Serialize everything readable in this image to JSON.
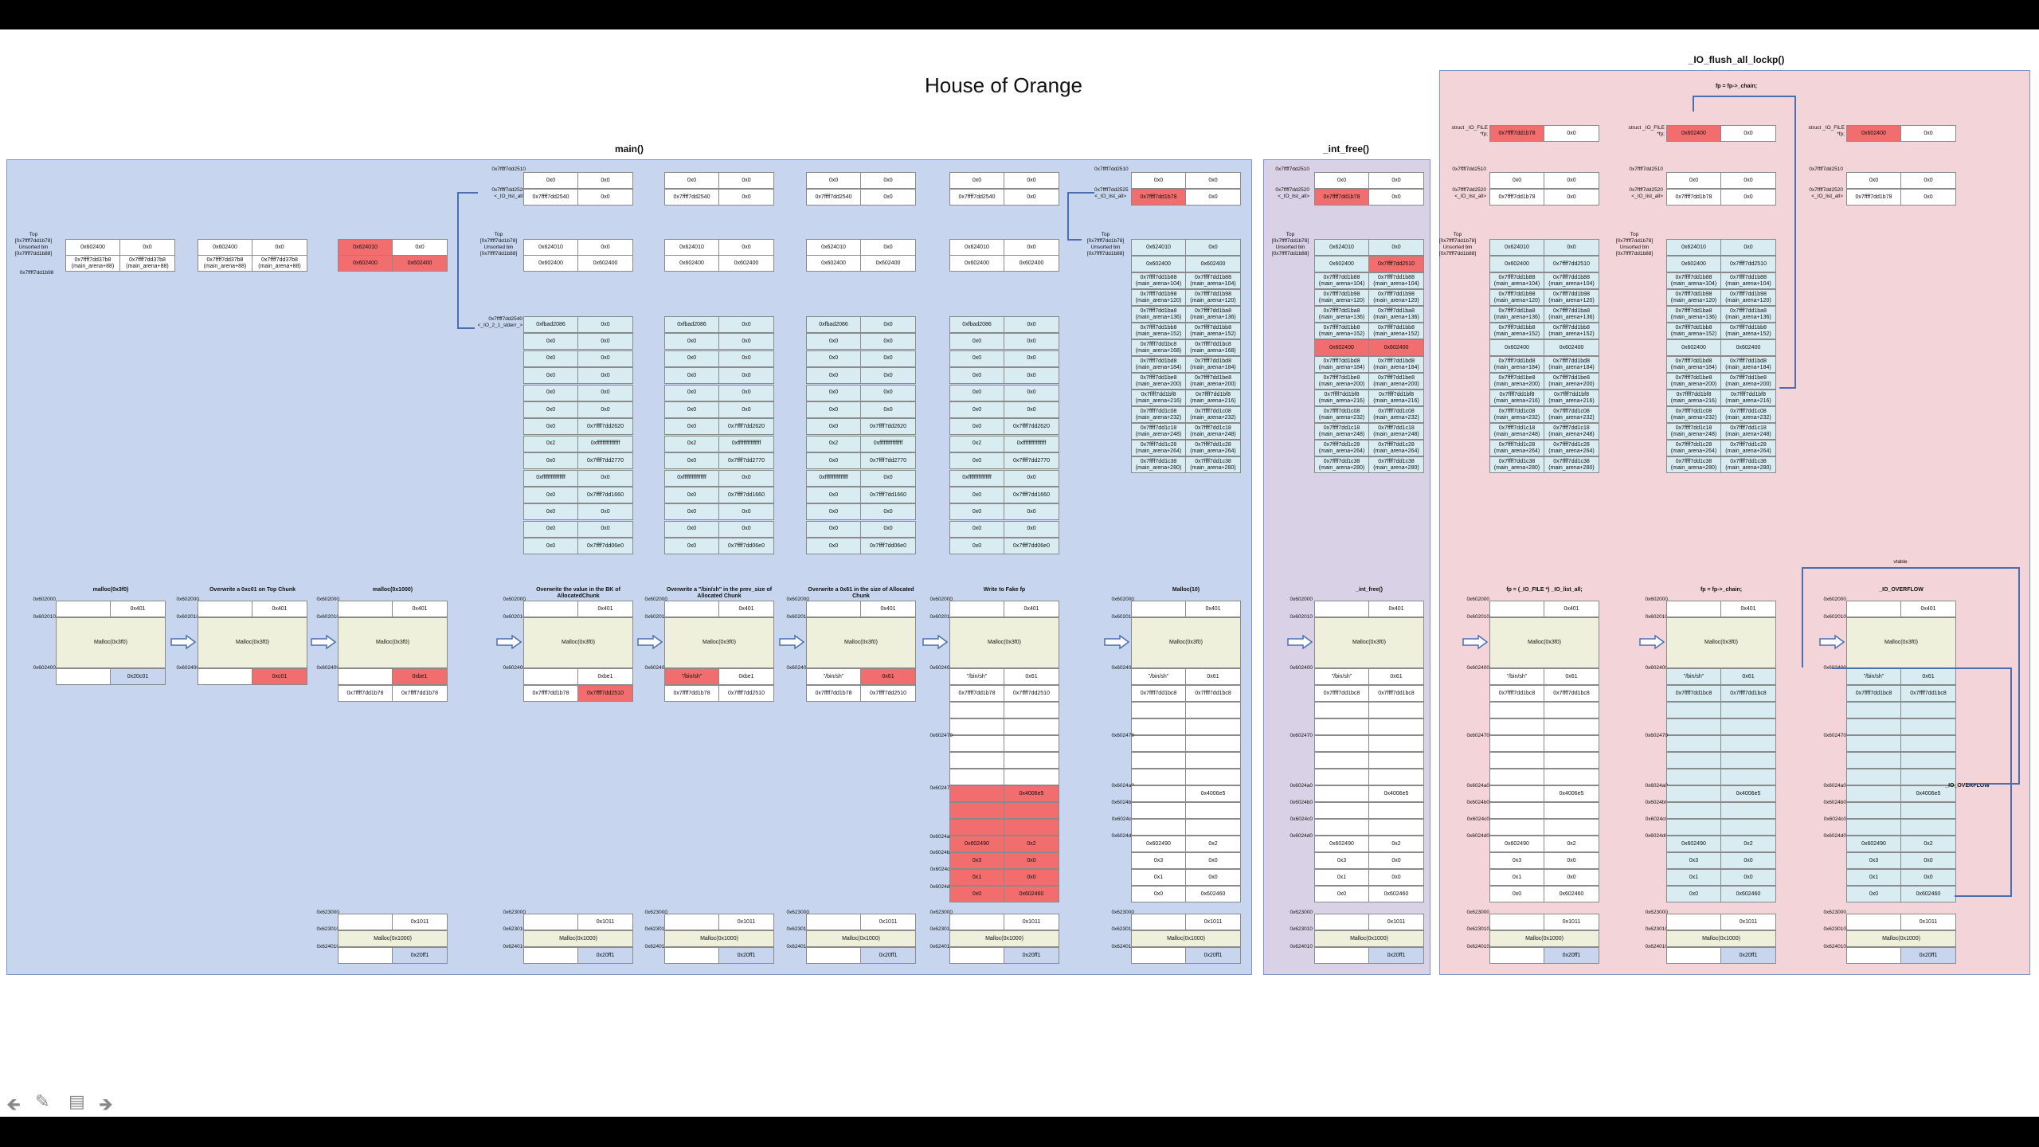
{
  "title": "House of Orange",
  "regions": {
    "main": "main()",
    "free": "_int_free()",
    "flush": "_IO_flush_all_lockp()"
  },
  "labels": {
    "top": "Top",
    "top_addr": "[0x7ffff7dd1b78]",
    "unsorted": "Unsorted bin",
    "unsorted_addr": "[0x7ffff7dd1b88]",
    "addr_1b98": "0x7ffff7dd1b98",
    "addr_2510": "0x7ffff7dd2510",
    "addr_2520": "0x7ffff7dd2520",
    "list_all": "<_IO_list_all>",
    "addr_2540": "0x7ffff7dd2540",
    "stderr": "<_IO_2_1_stderr_>",
    "addr_2525": "0x7ffff7dd2525",
    "struct_file": "struct _IO_FILE",
    "fp": "*fp;",
    "fp_chain": "fp = fp->_chain;",
    "vtable": "vtable",
    "io_overflow": "_IO_OVERFLOW"
  },
  "steps": [
    "malloc(0x3f0)",
    "Overwrite a 0xc01 on Top Chunk",
    "malloc(0x1000)",
    "Overwrite the value in the BK of AllocatedChunk",
    "Overwrite a \"/bin/sh\" in the prev_size of Allocated Chunk",
    "Overwrite a 0x61 in the size of Allocated Chunk",
    "Write to Fake fp",
    "Malloc(10)",
    "_int_free()",
    "fp = (_IO_FILE *) _IO_list_all;",
    "fp = fp->_chain;",
    "_IO_OVERFLOW"
  ],
  "addrs": {
    "a602000": "0x602000",
    "a602010": "0x602010",
    "a602400": "0x602400",
    "a602470": "0x602470",
    "a6024a0": "0x6024a0",
    "a6024b0": "0x6024b0",
    "a6024c0": "0x6024c0",
    "a6024d0": "0x6024d0",
    "a623000": "0x623000",
    "a623010": "0x623010",
    "a624010": "0x624010"
  },
  "values": {
    "v0": "0x0",
    "v401": "0x401",
    "malloc3f0": "Malloc(0x3f0)",
    "malloc1000": "Malloc(0x1000)",
    "v20c01": "0x20c01",
    "vc01": "0xc01",
    "vbe1": "0xbe1",
    "v1011": "0x1011",
    "v20ff1": "0x20ff1",
    "binsh": "\"/bin/sh\"",
    "v61": "0x61",
    "vb78": "0x7ffff7dd1b78",
    "v2510": "0x7ffff7dd2510",
    "vbc8": "0x7ffff7dd1bc8",
    "v4006e5": "0x4006e5",
    "v602490": "0x602490",
    "v2": "0x2",
    "v3": "0x3",
    "v1": "0x1",
    "v602460": "0x602460",
    "v624010": "0x624010",
    "v602400": "0x602400",
    "v2540": "0x7ffff7dd2540",
    "vfbad": "0xfbad2086",
    "v2620": "0x7ffff7dd2620",
    "vff": "0xffffffffffffffff",
    "v2770": "0x7ffff7dd2770",
    "v1660": "0x7ffff7dd1660",
    "v06e0": "0x7ffff7dd06e0",
    "vb7b8": "0x7ffff7dd37b8",
    "vma88": "(main_arena+88)"
  },
  "arena": [
    [
      "0x7ffff7dd1b88",
      "(main_arena+104)"
    ],
    [
      "0x7ffff7dd1b98",
      "(main_arena+120)"
    ],
    [
      "0x7ffff7dd1ba8",
      "(main_arena+136)"
    ],
    [
      "0x7ffff7dd1bb8",
      "(main_arena+152)"
    ],
    [
      "0x7ffff7dd1bc8",
      "(main_arena+168)"
    ],
    [
      "0x7ffff7dd1bd8",
      "(main_arena+184)"
    ],
    [
      "0x7ffff7dd1be8",
      "(main_arena+200)"
    ],
    [
      "0x7ffff7dd1bf8",
      "(main_arena+216)"
    ],
    [
      "0x7ffff7dd1c08",
      "(main_arena+232)"
    ],
    [
      "0x7ffff7dd1c18",
      "(main_arena+248)"
    ],
    [
      "0x7ffff7dd1c28",
      "(main_arena+264)"
    ],
    [
      "0x7ffff7dd1c38",
      "(main_arena+280)"
    ]
  ],
  "colors": {
    "main_bg": "#c7d6ee",
    "free_bg": "#d9d1e6",
    "flush_bg": "#f3d4d8",
    "highlight": "#f26d6d",
    "chunk": "#eef0dc",
    "arena": "#d8ecf2"
  }
}
